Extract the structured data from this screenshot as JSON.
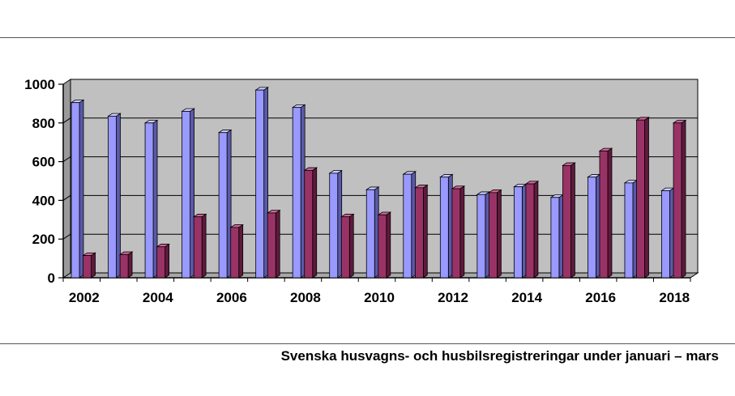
{
  "caption": "Svenska husvagns- och husbilsregistreringar under januari – mars",
  "colors": {
    "plot_background": "#c0c0c0",
    "series_1_front": "#9999ff",
    "series_1_top": "#ccccff",
    "series_1_side": "#5a5aaa",
    "series_2_front": "#993366",
    "series_2_top": "#cc6699",
    "series_2_side": "#5e1a3c",
    "grid": "#000000"
  },
  "chart_data": {
    "type": "bar",
    "title": "",
    "xlabel": "",
    "ylabel": "",
    "ylim": [
      0,
      1000
    ],
    "grid": true,
    "legend": "none",
    "categories": [
      "2002",
      "2003",
      "2004",
      "2005",
      "2006",
      "2007",
      "2008",
      "2009",
      "2010",
      "2011",
      "2012",
      "2013",
      "2014",
      "2015",
      "2016",
      "2017",
      "2018"
    ],
    "x_tick_labels": [
      "2002",
      "2004",
      "2006",
      "2008",
      "2010",
      "2012",
      "2014",
      "2016",
      "2018"
    ],
    "y_tick_labels": [
      "0",
      "200",
      "400",
      "600",
      "800",
      "1000"
    ],
    "series": [
      {
        "values": [
          905,
          835,
          800,
          860,
          750,
          970,
          880,
          540,
          455,
          535,
          520,
          430,
          470,
          415,
          520,
          490,
          450
        ]
      },
      {
        "values": [
          115,
          120,
          160,
          315,
          260,
          335,
          555,
          315,
          325,
          465,
          460,
          440,
          485,
          580,
          655,
          815,
          800
        ]
      }
    ]
  }
}
